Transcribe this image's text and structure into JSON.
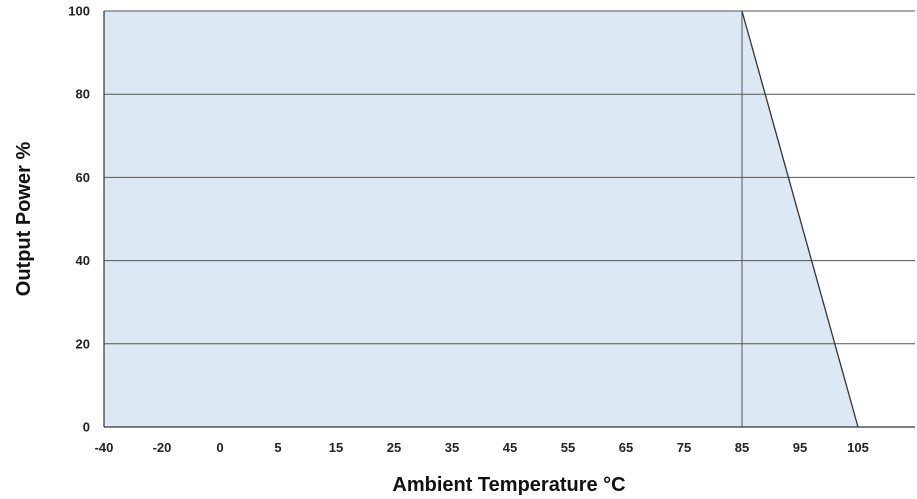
{
  "chart_data": {
    "type": "area",
    "title": "",
    "xlabel": "Ambient Temperature °C",
    "ylabel": "Output Power %",
    "x_ticks": [
      "-40",
      "-20",
      "0",
      "5",
      "15",
      "25",
      "35",
      "45",
      "55",
      "65",
      "75",
      "85",
      "95",
      "105"
    ],
    "y_ticks": [
      "0",
      "20",
      "40",
      "60",
      "80",
      "100"
    ],
    "ylim": [
      0,
      100
    ],
    "grid": "horizontal",
    "series": [
      {
        "x": [
          -40,
          85,
          105
        ],
        "y": [
          100,
          100,
          0
        ]
      }
    ],
    "reference_line_x": 85,
    "colors": {
      "fill": "#dce9f5",
      "line": "#333333",
      "grid": "#555555"
    }
  }
}
